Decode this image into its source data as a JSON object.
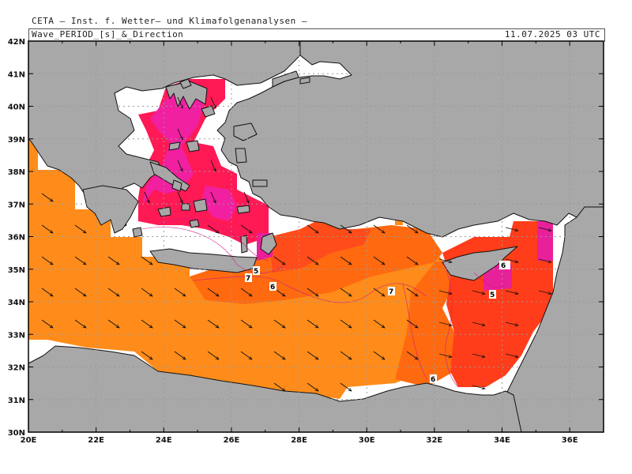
{
  "header": {
    "organization": "CETA — Inst. f. Wetter— und Klimafolgenanalysen —",
    "variable": "Wave_PERIOD_[s]_&_Direction",
    "datetime": "11.07.2025 03 UTC"
  },
  "map": {
    "lon_labels": [
      "20E",
      "22E",
      "24E",
      "26E",
      "28E",
      "30E",
      "32E",
      "34E",
      "36E"
    ],
    "lat_labels": [
      "42N",
      "41N",
      "40N",
      "39N",
      "38N",
      "37N",
      "36N",
      "35N",
      "34N",
      "33N",
      "32N",
      "31N",
      "30N"
    ],
    "contour_labels": [
      "5",
      "7",
      "6",
      "7",
      "6",
      "6",
      "5"
    ],
    "colors": {
      "land": "#a8a8a8",
      "no_data": "#ffffff",
      "period_5": "#ff8c1a",
      "period_5_6": "#ff6a10",
      "period_6_7": "#ff3d1a",
      "period_7_8": "#ff1a55",
      "period_8plus": "#f020a0",
      "grid": "#aaaaaa"
    }
  }
}
